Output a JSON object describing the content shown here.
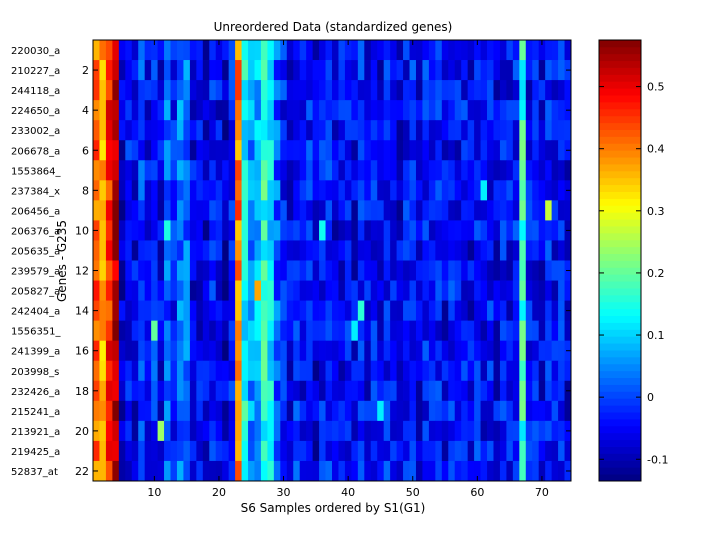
{
  "chart_data": {
    "type": "heatmap",
    "title": "Unreordered Data (standardized genes)",
    "xlabel": "S6 Samples ordered by S1(G1)",
    "ylabel": "Genes - G235",
    "n_rows": 22,
    "n_cols": 74,
    "x_ticks": [
      10,
      20,
      30,
      40,
      50,
      60,
      70
    ],
    "y_ticks": [
      2,
      4,
      6,
      8,
      10,
      12,
      14,
      16,
      18,
      20,
      22
    ],
    "row_labels": [
      "220030_a",
      "210227_a",
      "244118_a",
      "224650_a",
      "233002_a",
      "206678_a",
      "1553864_",
      "237384_x",
      "206456_a",
      "206376_a",
      "205635_a",
      "239579_a",
      "205827_a",
      "242404_a",
      "1556351_",
      "241399_a",
      "203998_s",
      "232426_a",
      "215241_a",
      "213921_a",
      "219425_a",
      "52837_at"
    ],
    "colorbar": {
      "colormap": "jet",
      "vmin": -0.135,
      "vmax": 0.575,
      "ticks": [
        -0.1,
        0,
        0.1,
        0.2,
        0.3,
        0.4,
        0.5
      ]
    },
    "column_profile": [
      0.42,
      0.36,
      0.46,
      0.54,
      -0.08,
      -0.04,
      -0.06,
      0.0,
      -0.05,
      -0.02,
      -0.06,
      0.02,
      -0.04,
      0.04,
      0.02,
      -0.06,
      -0.05,
      -0.07,
      -0.04,
      -0.06,
      -0.08,
      -0.03,
      0.4,
      0.14,
      0.05,
      0.08,
      0.16,
      0.12,
      0.02,
      -0.03,
      -0.06,
      -0.02,
      -0.05,
      -0.03,
      -0.07,
      -0.04,
      -0.02,
      -0.06,
      -0.05,
      -0.03,
      -0.06,
      -0.02,
      -0.05,
      -0.04,
      -0.06,
      -0.03,
      -0.05,
      -0.07,
      -0.04,
      -0.02,
      -0.06,
      -0.03,
      -0.05,
      -0.04,
      -0.06,
      -0.03,
      -0.05,
      -0.04,
      -0.06,
      -0.03,
      -0.05,
      -0.04,
      -0.06,
      -0.04,
      -0.05,
      -0.03,
      0.16,
      -0.05,
      -0.04,
      -0.06,
      -0.03,
      -0.05,
      -0.04,
      -0.06
    ],
    "notable_cells": [
      {
        "row": 8,
        "col": 61,
        "value": 0.12
      },
      {
        "row": 9,
        "col": 71,
        "value": 0.27
      },
      {
        "row": 10,
        "col": 12,
        "value": 0.15
      },
      {
        "row": 10,
        "col": 36,
        "value": 0.14
      },
      {
        "row": 13,
        "col": 26,
        "value": 0.37
      },
      {
        "row": 14,
        "col": 42,
        "value": 0.16
      },
      {
        "row": 15,
        "col": 10,
        "value": 0.2
      },
      {
        "row": 15,
        "col": 41,
        "value": 0.12
      },
      {
        "row": 19,
        "col": 45,
        "value": 0.12
      },
      {
        "row": 20,
        "col": 11,
        "value": 0.24
      }
    ]
  }
}
